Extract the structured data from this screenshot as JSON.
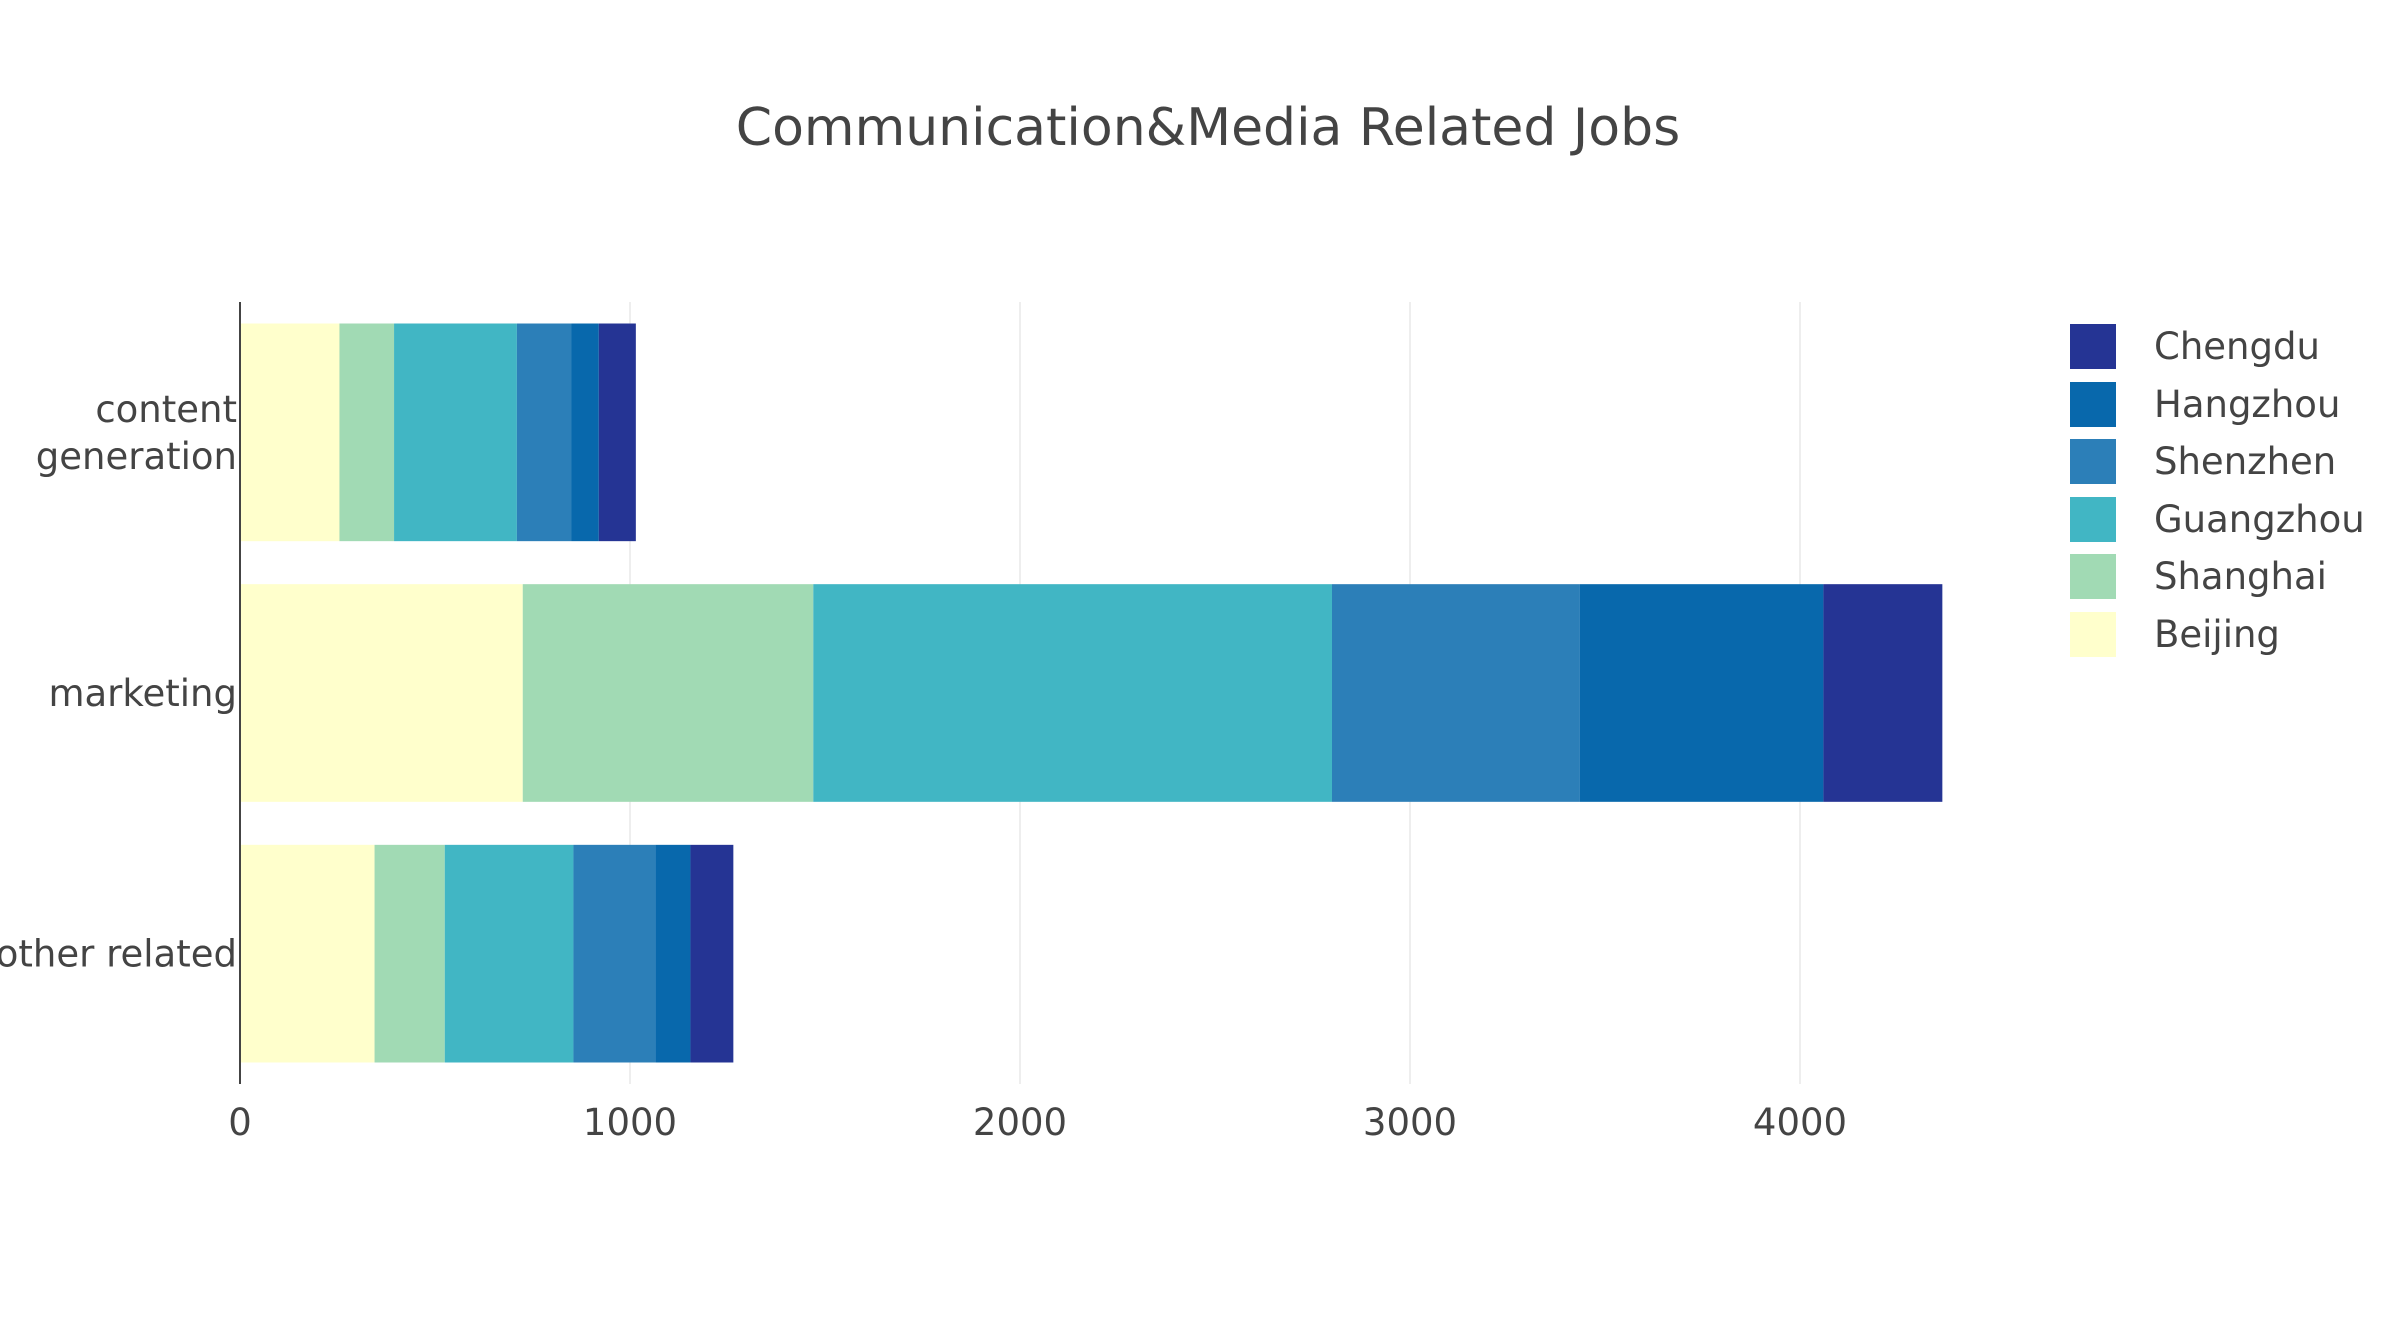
{
  "chart_data": {
    "type": "bar",
    "orientation": "horizontal",
    "stacked": true,
    "title": "Communication&Media Related Jobs",
    "xlabel": "",
    "ylabel": "",
    "categories": [
      "content generation",
      "marketing",
      "other related"
    ],
    "category_label_lines": [
      [
        "content",
        "generation"
      ],
      [
        "marketing"
      ],
      [
        "other related"
      ]
    ],
    "xlim": [
      0,
      4600
    ],
    "x_ticks": [
      0,
      1000,
      2000,
      3000,
      4000
    ],
    "x_tick_labels": [
      "0",
      "1000",
      "2000",
      "3000",
      "4000"
    ],
    "grid": "vertical",
    "legend_position": "right",
    "series": [
      {
        "name": "Beijing",
        "color": "#ffffcc",
        "values": [
          255,
          725,
          345
        ]
      },
      {
        "name": "Shanghai",
        "color": "#a1dab4",
        "values": [
          140,
          745,
          180
        ]
      },
      {
        "name": "Guangzhou",
        "color": "#41b6c4",
        "values": [
          315,
          1330,
          330
        ]
      },
      {
        "name": "Shenzhen",
        "color": "#2c7fb8",
        "values": [
          140,
          635,
          210
        ]
      },
      {
        "name": "Hangzhou",
        "color": "#0868ac",
        "values": [
          70,
          625,
          90
        ]
      },
      {
        "name": "Chengdu",
        "color": "#253494",
        "values": [
          95,
          305,
          110
        ]
      }
    ],
    "legend_order": [
      "Chengdu",
      "Hangzhou",
      "Shenzhen",
      "Guangzhou",
      "Shanghai",
      "Beijing"
    ]
  }
}
